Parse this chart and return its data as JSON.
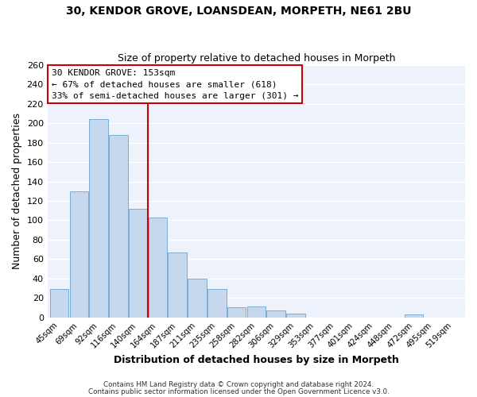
{
  "title": "30, KENDOR GROVE, LOANSDEAN, MORPETH, NE61 2BU",
  "subtitle": "Size of property relative to detached houses in Morpeth",
  "xlabel": "Distribution of detached houses by size in Morpeth",
  "ylabel": "Number of detached properties",
  "bar_color": "#c5d8ed",
  "bar_edge_color": "#7aadd4",
  "vline_color": "#cc0000",
  "vline_x": 4.5,
  "categories": [
    "45sqm",
    "69sqm",
    "92sqm",
    "116sqm",
    "140sqm",
    "164sqm",
    "187sqm",
    "211sqm",
    "235sqm",
    "258sqm",
    "282sqm",
    "306sqm",
    "329sqm",
    "353sqm",
    "377sqm",
    "401sqm",
    "424sqm",
    "448sqm",
    "472sqm",
    "495sqm",
    "519sqm"
  ],
  "values": [
    29,
    130,
    204,
    188,
    112,
    103,
    67,
    40,
    29,
    10,
    11,
    7,
    4,
    0,
    0,
    0,
    0,
    0,
    3,
    0,
    0
  ],
  "ylim": [
    0,
    260
  ],
  "yticks": [
    0,
    20,
    40,
    60,
    80,
    100,
    120,
    140,
    160,
    180,
    200,
    220,
    240,
    260
  ],
  "annotation_title": "30 KENDOR GROVE: 153sqm",
  "annotation_line1": "← 67% of detached houses are smaller (618)",
  "annotation_line2": "33% of semi-detached houses are larger (301) →",
  "annotation_box_color": "#ffffff",
  "annotation_box_edge": "#cc0000",
  "footer_line1": "Contains HM Land Registry data © Crown copyright and database right 2024.",
  "footer_line2": "Contains public sector information licensed under the Open Government Licence v3.0.",
  "plot_bg_color": "#eef2fb",
  "fig_bg_color": "#ffffff",
  "grid_color": "#ffffff"
}
